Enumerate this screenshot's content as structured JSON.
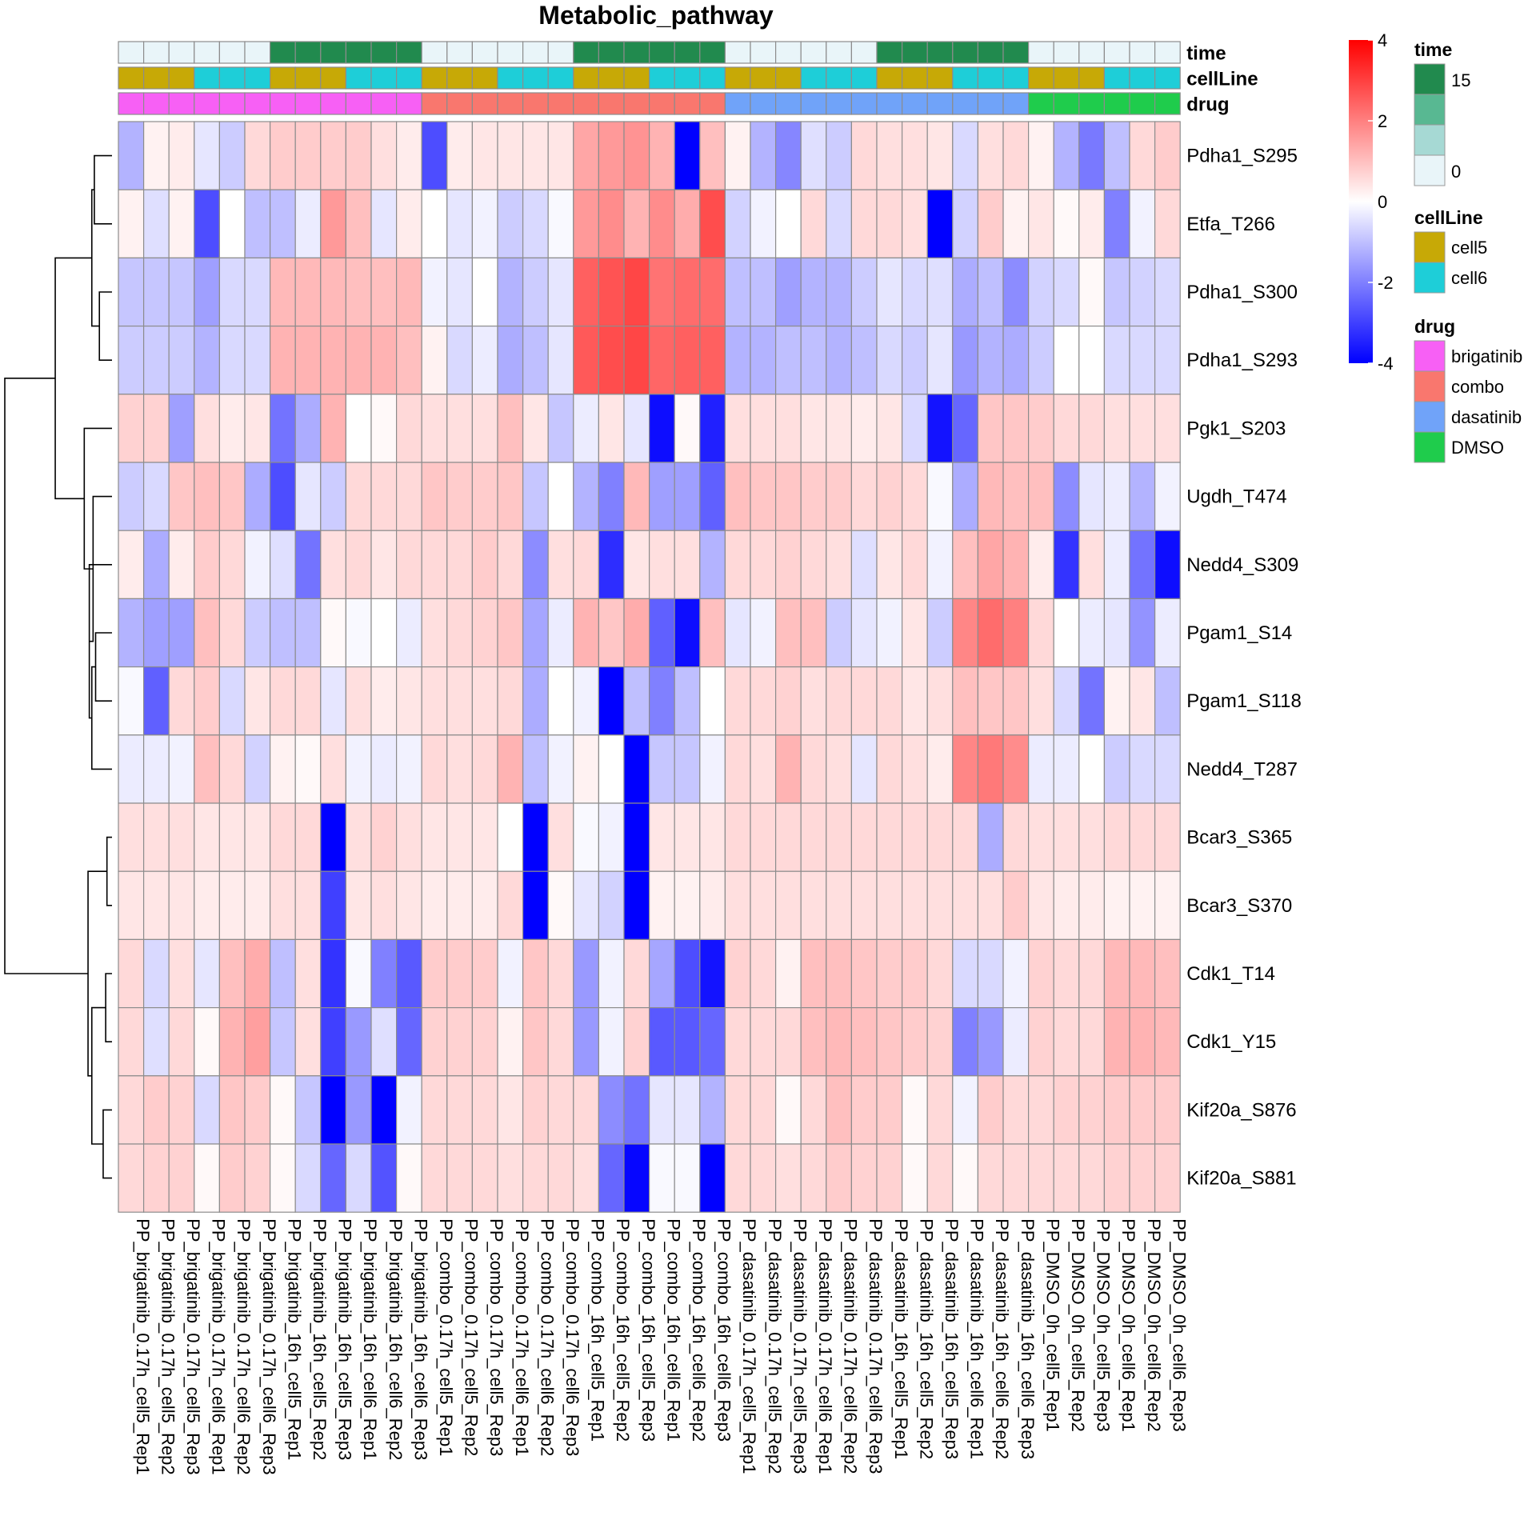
{
  "chart_data": {
    "type": "heatmap",
    "title": "Metabolic_pathway",
    "rows": [
      "Pdha1_S295",
      "Etfa_T266",
      "Pdha1_S300",
      "Pdha1_S293",
      "Pgk1_S203",
      "Ugdh_T474",
      "Nedd4_S309",
      "Pgam1_S14",
      "Pgam1_S118",
      "Nedd4_T287",
      "Bcar3_S365",
      "Bcar3_S370",
      "Cdk1_T14",
      "Cdk1_Y15",
      "Kif20a_S876",
      "Kif20a_S881"
    ],
    "columns": [
      "PP_brigatinib_0.17h_cell5_Rep1",
      "PP_brigatinib_0.17h_cell5_Rep2",
      "PP_brigatinib_0.17h_cell5_Rep3",
      "PP_brigatinib_0.17h_cell6_Rep1",
      "PP_brigatinib_0.17h_cell6_Rep2",
      "PP_brigatinib_0.17h_cell6_Rep3",
      "PP_brigatinib_16h_cell5_Rep1",
      "PP_brigatinib_16h_cell5_Rep2",
      "PP_brigatinib_16h_cell5_Rep3",
      "PP_brigatinib_16h_cell6_Rep1",
      "PP_brigatinib_16h_cell6_Rep2",
      "PP_brigatinib_16h_cell6_Rep3",
      "PP_combo_0.17h_cell5_Rep1",
      "PP_combo_0.17h_cell5_Rep2",
      "PP_combo_0.17h_cell5_Rep3",
      "PP_combo_0.17h_cell6_Rep1",
      "PP_combo_0.17h_cell6_Rep2",
      "PP_combo_0.17h_cell6_Rep3",
      "PP_combo_16h_cell5_Rep1",
      "PP_combo_16h_cell5_Rep2",
      "PP_combo_16h_cell5_Rep3",
      "PP_combo_16h_cell6_Rep1",
      "PP_combo_16h_cell6_Rep2",
      "PP_combo_16h_cell6_Rep3",
      "PP_dasatinib_0.17h_cell5_Rep1",
      "PP_dasatinib_0.17h_cell5_Rep2",
      "PP_dasatinib_0.17h_cell5_Rep3",
      "PP_dasatinib_0.17h_cell6_Rep1",
      "PP_dasatinib_0.17h_cell6_Rep2",
      "PP_dasatinib_0.17h_cell6_Rep3",
      "PP_dasatinib_16h_cell5_Rep1",
      "PP_dasatinib_16h_cell5_Rep2",
      "PP_dasatinib_16h_cell5_Rep3",
      "PP_dasatinib_16h_cell6_Rep1",
      "PP_dasatinib_16h_cell6_Rep2",
      "PP_dasatinib_16h_cell6_Rep3",
      "PP_DMSO_0h_cell5_Rep1",
      "PP_DMSO_0h_cell5_Rep2",
      "PP_DMSO_0h_cell5_Rep3",
      "PP_DMSO_0h_cell6_Rep1",
      "PP_DMSO_0h_cell6_Rep2",
      "PP_DMSO_0h_cell6_Rep3"
    ],
    "values": [
      [
        -1.2,
        0.2,
        0.3,
        -0.4,
        -0.8,
        0.6,
        0.8,
        0.8,
        0.8,
        0.8,
        0.5,
        0.3,
        -2.8,
        0.3,
        0.4,
        0.4,
        0.4,
        0.4,
        1.4,
        1.6,
        1.7,
        1.2,
        -4.2,
        1.0,
        0.2,
        -1.2,
        -1.9,
        -0.5,
        -0.8,
        0.6,
        0.5,
        0.5,
        0.4,
        -0.6,
        0.5,
        0.6,
        0.2,
        -1.2,
        -2.1,
        -1.0,
        0.6,
        0.8
      ],
      [
        0.2,
        -0.5,
        0.2,
        -2.8,
        0.0,
        -1.0,
        -1.0,
        -0.3,
        1.6,
        1.0,
        -0.4,
        0.3,
        0.0,
        -0.4,
        -0.2,
        -0.8,
        -0.6,
        -0.1,
        1.6,
        1.8,
        1.2,
        1.8,
        1.3,
        2.8,
        -0.7,
        -0.2,
        0.0,
        0.6,
        -0.6,
        0.6,
        0.6,
        0.5,
        -4.0,
        -0.7,
        0.8,
        0.2,
        0.4,
        0.1,
        0.3,
        -2.0,
        -0.2,
        0.6
      ],
      [
        -0.9,
        -0.9,
        -0.9,
        -1.5,
        -0.6,
        -0.6,
        1.1,
        1.1,
        1.1,
        1.0,
        1.0,
        1.1,
        -0.2,
        -0.4,
        0.0,
        -1.2,
        -0.8,
        -0.4,
        2.5,
        2.7,
        2.9,
        2.2,
        2.3,
        2.3,
        -1.0,
        -1.0,
        -1.5,
        -1.2,
        -1.2,
        -0.8,
        -0.4,
        -0.6,
        -0.5,
        -1.3,
        -1.0,
        -1.8,
        -0.7,
        -0.6,
        0.1,
        -0.9,
        -0.7,
        -0.6
      ],
      [
        -0.8,
        -0.8,
        -0.8,
        -1.2,
        -0.6,
        -0.6,
        1.2,
        1.2,
        1.2,
        1.2,
        1.2,
        1.0,
        0.2,
        -0.6,
        -0.3,
        -1.3,
        -1.0,
        -0.4,
        2.6,
        2.8,
        2.9,
        2.4,
        2.5,
        2.5,
        -1.2,
        -1.2,
        -1.0,
        -1.0,
        -1.2,
        -1.0,
        -0.6,
        -0.8,
        -0.4,
        -1.6,
        -1.2,
        -1.3,
        -0.8,
        0.0,
        0.0,
        -0.6,
        -0.6,
        -0.6
      ],
      [
        0.7,
        0.7,
        -1.5,
        0.5,
        0.3,
        0.4,
        -2.2,
        -1.3,
        1.2,
        0.0,
        0.1,
        0.6,
        0.5,
        0.5,
        0.5,
        1.0,
        0.4,
        -0.9,
        -0.3,
        0.4,
        -0.4,
        -3.8,
        0.1,
        -3.5,
        0.5,
        0.5,
        0.5,
        0.4,
        0.4,
        0.3,
        0.4,
        -0.6,
        -3.7,
        -2.4,
        0.9,
        0.9,
        0.8,
        0.6,
        0.6,
        0.5,
        0.5,
        0.5
      ],
      [
        -0.8,
        -0.6,
        0.9,
        1.0,
        0.9,
        -1.3,
        -2.8,
        -0.4,
        -0.8,
        0.6,
        0.6,
        0.6,
        0.9,
        0.8,
        0.8,
        0.9,
        -0.9,
        0.0,
        -1.2,
        -2.0,
        1.1,
        -1.5,
        -1.5,
        -2.5,
        1.0,
        0.9,
        0.9,
        0.8,
        0.8,
        0.6,
        0.7,
        0.6,
        -0.1,
        -1.3,
        1.1,
        1.0,
        1.0,
        -1.8,
        -0.4,
        -0.3,
        -1.2,
        -0.2
      ],
      [
        0.3,
        -1.3,
        0.3,
        0.8,
        0.6,
        -0.2,
        -0.5,
        -2.2,
        0.5,
        0.6,
        0.4,
        0.6,
        0.6,
        0.6,
        0.8,
        0.6,
        -1.8,
        0.5,
        0.6,
        -3.3,
        0.4,
        0.5,
        0.5,
        -1.2,
        0.6,
        0.6,
        0.7,
        0.6,
        0.5,
        -0.5,
        0.4,
        0.6,
        -0.2,
        1.0,
        1.4,
        1.2,
        0.3,
        -3.2,
        0.5,
        -0.3,
        -2.2,
        -3.8
      ],
      [
        -1.2,
        -1.5,
        -1.5,
        1.0,
        0.6,
        -0.8,
        -1.0,
        -1.0,
        0.1,
        -0.1,
        0.0,
        -0.3,
        0.5,
        0.6,
        0.7,
        0.9,
        -1.4,
        -0.3,
        1.2,
        0.9,
        1.3,
        -2.5,
        -3.8,
        1.0,
        -0.4,
        -0.2,
        1.0,
        1.0,
        -0.8,
        -0.4,
        -0.2,
        0.4,
        -0.8,
        1.9,
        2.3,
        2.0,
        0.6,
        0.0,
        -0.3,
        -0.4,
        -1.7,
        -0.3
      ],
      [
        -0.1,
        -2.5,
        0.6,
        0.8,
        -0.6,
        0.4,
        0.6,
        0.6,
        -0.4,
        0.5,
        0.3,
        0.4,
        0.5,
        0.5,
        0.5,
        0.6,
        -1.3,
        0.0,
        -0.2,
        -4.0,
        -1.0,
        -2.0,
        -1.0,
        0.0,
        0.6,
        0.6,
        0.7,
        0.5,
        0.6,
        0.6,
        0.6,
        0.4,
        0.5,
        1.0,
        0.9,
        0.9,
        0.5,
        -0.6,
        -2.2,
        0.2,
        0.4,
        -1.0
      ],
      [
        -0.3,
        -0.3,
        -0.2,
        1.0,
        0.6,
        -0.7,
        0.2,
        0.1,
        0.5,
        -0.2,
        -0.3,
        -0.2,
        0.6,
        0.5,
        0.6,
        1.2,
        -1.0,
        -0.2,
        0.2,
        0.0,
        -4.2,
        -0.9,
        -0.9,
        -0.2,
        0.6,
        0.5,
        1.2,
        0.6,
        0.5,
        -0.4,
        0.6,
        0.5,
        0.3,
        1.9,
        2.1,
        1.8,
        -0.3,
        -0.3,
        0.0,
        -0.8,
        -0.6,
        -0.6
      ],
      [
        0.5,
        0.5,
        0.5,
        0.4,
        0.4,
        0.4,
        0.6,
        0.6,
        -4.3,
        0.5,
        0.7,
        0.5,
        0.4,
        0.4,
        0.4,
        0.0,
        -4.4,
        0.5,
        -0.1,
        -0.2,
        -4.2,
        0.4,
        0.4,
        0.4,
        0.6,
        0.6,
        0.6,
        0.6,
        0.6,
        0.6,
        0.6,
        0.6,
        0.6,
        0.6,
        -1.3,
        0.6,
        0.5,
        0.5,
        0.5,
        0.6,
        0.6,
        0.6
      ],
      [
        0.4,
        0.4,
        0.4,
        0.3,
        0.3,
        0.3,
        0.5,
        0.5,
        -3.0,
        0.4,
        0.5,
        0.4,
        0.3,
        0.3,
        0.3,
        0.6,
        -4.3,
        0.1,
        -0.4,
        -0.7,
        -4.4,
        0.2,
        0.2,
        0.3,
        0.5,
        0.5,
        0.5,
        0.5,
        0.5,
        0.5,
        0.5,
        0.5,
        0.5,
        0.5,
        0.5,
        0.8,
        0.4,
        0.3,
        0.3,
        0.2,
        0.2,
        0.2
      ],
      [
        0.6,
        -0.6,
        0.5,
        -0.4,
        1.0,
        1.3,
        -1.0,
        0.5,
        -3.2,
        -0.1,
        -2.0,
        -2.6,
        0.8,
        0.8,
        0.8,
        -0.2,
        0.9,
        0.6,
        -1.6,
        -0.2,
        0.6,
        -1.4,
        -2.8,
        -3.7,
        0.7,
        0.6,
        0.2,
        1.0,
        1.0,
        0.9,
        0.8,
        0.8,
        0.6,
        -0.6,
        -0.6,
        -0.2,
        0.7,
        0.6,
        0.6,
        1.1,
        1.1,
        1.0
      ],
      [
        0.6,
        -0.5,
        0.6,
        0.1,
        1.2,
        1.5,
        -0.9,
        0.5,
        -3.0,
        -1.6,
        -0.5,
        -2.4,
        0.7,
        0.7,
        0.7,
        0.2,
        0.9,
        0.6,
        -1.6,
        -0.2,
        0.7,
        -2.6,
        -2.6,
        -2.4,
        0.6,
        0.6,
        0.6,
        1.0,
        1.1,
        1.0,
        0.9,
        0.8,
        0.7,
        -2.0,
        -1.6,
        -0.3,
        0.7,
        0.6,
        0.6,
        1.2,
        1.2,
        1.1
      ],
      [
        0.6,
        0.8,
        0.7,
        -0.6,
        0.9,
        0.8,
        0.1,
        -0.9,
        -4.4,
        -1.6,
        -4.0,
        -0.2,
        0.6,
        0.6,
        0.6,
        0.4,
        0.7,
        0.6,
        0.6,
        -1.8,
        -2.2,
        -0.4,
        -0.4,
        -1.2,
        0.6,
        0.6,
        0.1,
        0.6,
        1.0,
        0.8,
        0.8,
        0.1,
        0.6,
        -0.2,
        0.8,
        0.6,
        0.6,
        0.7,
        0.7,
        0.8,
        0.8,
        0.8
      ],
      [
        0.6,
        0.7,
        0.7,
        0.1,
        0.8,
        0.7,
        0.1,
        -0.6,
        -2.4,
        -0.6,
        -2.7,
        0.1,
        0.6,
        0.6,
        0.6,
        0.5,
        0.6,
        0.6,
        0.5,
        -2.4,
        -3.9,
        -0.1,
        -0.1,
        -4.3,
        0.6,
        0.6,
        0.5,
        0.6,
        0.8,
        0.7,
        0.7,
        0.1,
        0.6,
        0.1,
        0.6,
        0.6,
        0.6,
        0.6,
        0.6,
        0.7,
        0.7,
        0.7
      ]
    ],
    "annotations": {
      "time": [
        0,
        0,
        0,
        0,
        0,
        0,
        16,
        16,
        16,
        16,
        16,
        16,
        0,
        0,
        0,
        0,
        0,
        0,
        16,
        16,
        16,
        16,
        16,
        16,
        0,
        0,
        0,
        0,
        0,
        0,
        16,
        16,
        16,
        16,
        16,
        16,
        0,
        0,
        0,
        0,
        0,
        0
      ],
      "cellLine": [
        "cell5",
        "cell5",
        "cell5",
        "cell6",
        "cell6",
        "cell6",
        "cell5",
        "cell5",
        "cell5",
        "cell6",
        "cell6",
        "cell6",
        "cell5",
        "cell5",
        "cell5",
        "cell6",
        "cell6",
        "cell6",
        "cell5",
        "cell5",
        "cell5",
        "cell6",
        "cell6",
        "cell6",
        "cell5",
        "cell5",
        "cell5",
        "cell6",
        "cell6",
        "cell6",
        "cell5",
        "cell5",
        "cell5",
        "cell6",
        "cell6",
        "cell6",
        "cell5",
        "cell5",
        "cell5",
        "cell6",
        "cell6",
        "cell6"
      ],
      "drug": [
        "brigatinib",
        "brigatinib",
        "brigatinib",
        "brigatinib",
        "brigatinib",
        "brigatinib",
        "brigatinib",
        "brigatinib",
        "brigatinib",
        "brigatinib",
        "brigatinib",
        "brigatinib",
        "combo",
        "combo",
        "combo",
        "combo",
        "combo",
        "combo",
        "combo",
        "combo",
        "combo",
        "combo",
        "combo",
        "combo",
        "dasatinib",
        "dasatinib",
        "dasatinib",
        "dasatinib",
        "dasatinib",
        "dasatinib",
        "dasatinib",
        "dasatinib",
        "dasatinib",
        "dasatinib",
        "dasatinib",
        "dasatinib",
        "DMSO",
        "DMSO",
        "DMSO",
        "DMSO",
        "DMSO",
        "DMSO"
      ]
    },
    "annotation_labels": [
      "time",
      "cellLine",
      "drug"
    ],
    "color_scale": {
      "min": -4,
      "max": 4,
      "low": "#0000FF",
      "mid": "#FFFFFF",
      "high": "#FF0000",
      "ticks": [
        "4",
        "2",
        "0",
        "-2",
        "-4"
      ]
    },
    "row_dendrogram": {
      "merges": [
        [
          2,
          3
        ],
        [
          0,
          1
        ],
        [
          "m1",
          "m0"
        ],
        [
          7,
          8
        ],
        [
          9,
          "m3"
        ],
        [
          6,
          "m4"
        ],
        [
          5,
          "m5"
        ],
        [
          4,
          "m6"
        ],
        [
          10,
          11
        ],
        [
          12,
          13
        ],
        [
          14,
          15
        ],
        [
          "m9",
          "m10"
        ],
        [
          "m8",
          "m11"
        ],
        [
          "m2",
          "m7"
        ],
        [
          "m13",
          "m12"
        ]
      ],
      "heights": [
        0.1,
        0.14,
        0.16,
        0.13,
        0.16,
        0.18,
        0.15,
        0.22,
        0.04,
        0.05,
        0.07,
        0.16,
        0.19,
        0.45,
        0.85
      ]
    },
    "grid": true
  },
  "legend": {
    "time": {
      "title": "time",
      "colors": [
        "#218A4E",
        "#58B892",
        "#A6D9D4",
        "#E9F5F9"
      ],
      "labels": [
        "15",
        "0"
      ]
    },
    "cellLine": {
      "title": "cellLine",
      "items": [
        {
          "label": "cell5",
          "color": "#C7A906"
        },
        {
          "label": "cell6",
          "color": "#1ECED8"
        }
      ]
    },
    "drug": {
      "title": "drug",
      "items": [
        {
          "label": "brigatinib",
          "color": "#F760F5"
        },
        {
          "label": "combo",
          "color": "#F9776E"
        },
        {
          "label": "dasatinib",
          "color": "#70A3F9"
        },
        {
          "label": "DMSO",
          "color": "#1FCC4C"
        }
      ]
    },
    "time_colors": {
      "0": "#E9F5F9",
      "16": "#218A4E"
    }
  }
}
